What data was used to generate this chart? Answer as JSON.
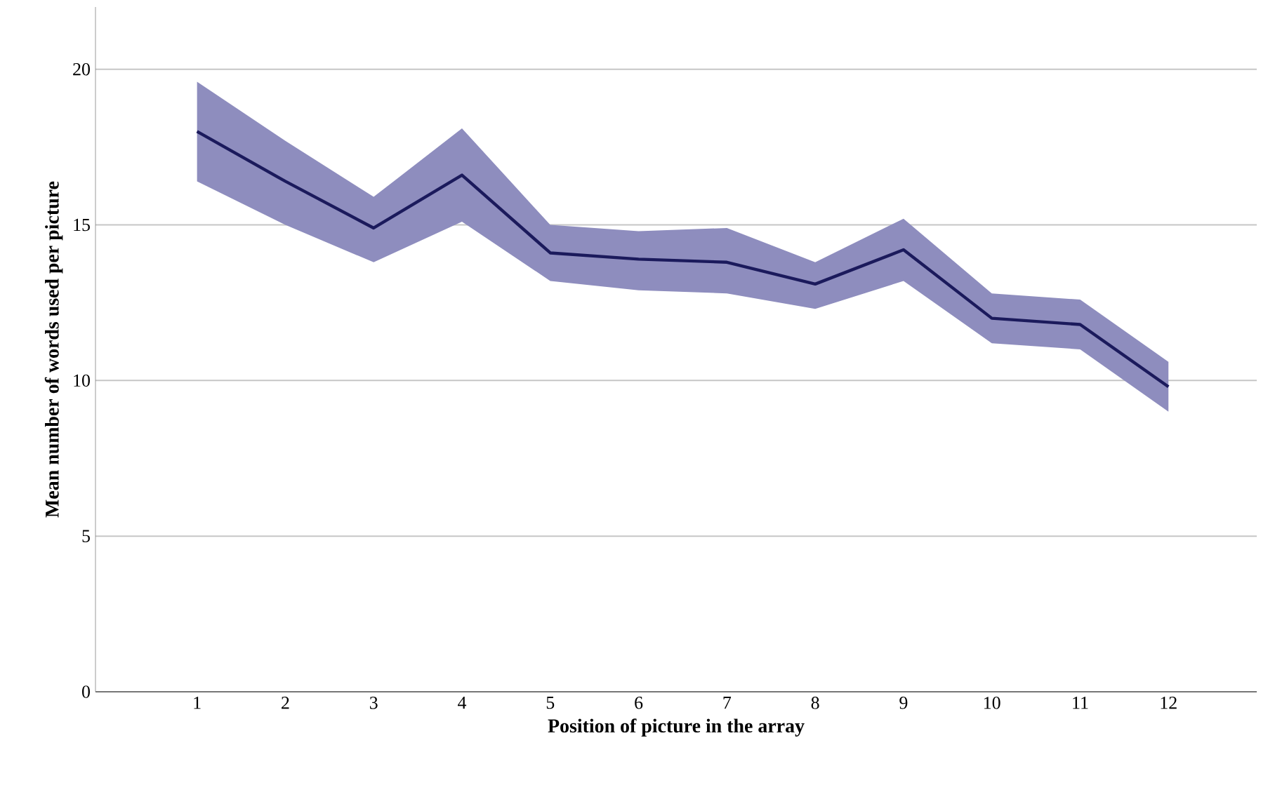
{
  "chart_data": {
    "type": "line",
    "xlabel": "Position of picture in the array",
    "ylabel": "Mean number of words used per picture",
    "categories": [
      "1",
      "2",
      "3",
      "4",
      "5",
      "6",
      "7",
      "8",
      "9",
      "10",
      "11",
      "12"
    ],
    "series": [
      {
        "color": "#1b1a5c",
        "values": [
          18.0,
          16.4,
          14.9,
          16.6,
          14.1,
          13.9,
          13.8,
          13.1,
          14.2,
          12.0,
          11.8,
          9.8
        ],
        "lower": [
          16.4,
          15.0,
          13.8,
          15.1,
          13.2,
          12.9,
          12.8,
          12.3,
          13.2,
          11.2,
          11.0,
          9.0
        ],
        "upper": [
          19.6,
          17.7,
          15.9,
          18.1,
          15.0,
          14.8,
          14.9,
          13.8,
          15.2,
          12.8,
          12.6,
          10.6
        ]
      }
    ],
    "ylim": [
      0,
      22
    ],
    "yticks": [
      0,
      5,
      10,
      15,
      20
    ],
    "grid": "y",
    "marker": "none",
    "line_style": "solid"
  }
}
